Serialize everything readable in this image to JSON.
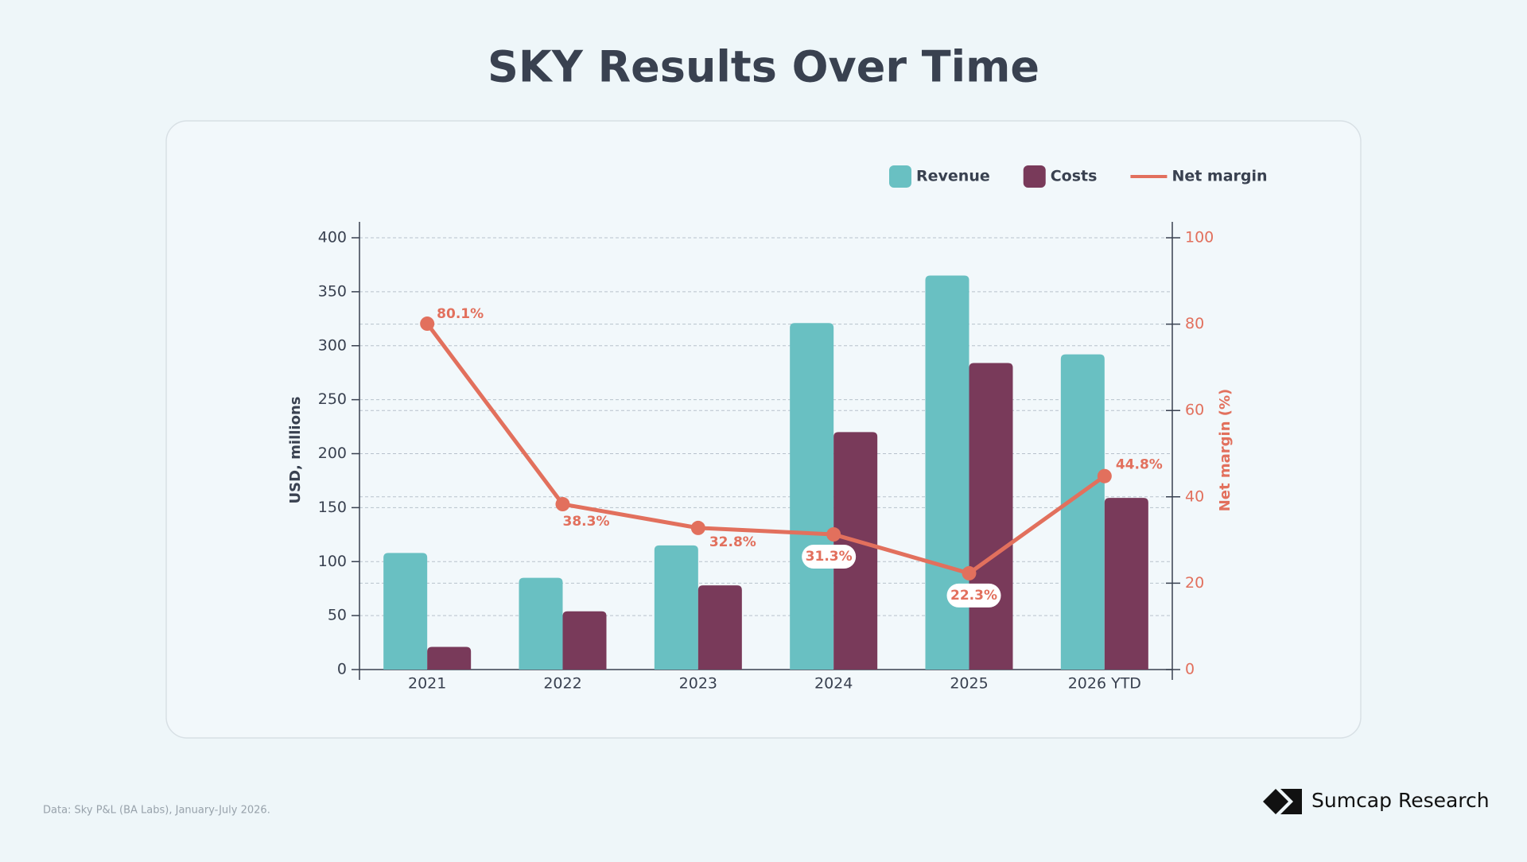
{
  "chart_data": {
    "type": "bar",
    "title": "SKY Results Over Time",
    "categories": [
      "2021",
      "2022",
      "2023",
      "2024",
      "2025",
      "2026 YTD"
    ],
    "series": [
      {
        "name": "Revenue",
        "color": "#69c0c2",
        "values": [
          108,
          85,
          115,
          321,
          365,
          292
        ]
      },
      {
        "name": "Costs",
        "color": "#793a5a",
        "values": [
          21,
          54,
          78,
          220,
          284,
          159
        ]
      },
      {
        "name": "Net margin",
        "color": "#e2705d",
        "type": "line",
        "axis": "y2",
        "values": [
          80.1,
          38.3,
          32.8,
          31.3,
          22.3,
          44.8
        ],
        "value_labels": [
          "80.1%",
          "38.3%",
          "32.8%",
          "31.3%",
          "22.3%",
          "44.8%"
        ]
      }
    ],
    "ylabel": "USD, millions",
    "y2label": "Net margin (%)",
    "ylim": [
      0,
      400
    ],
    "yticks": [
      0,
      50,
      100,
      150,
      200,
      250,
      300,
      350,
      400
    ],
    "y2lim": [
      0,
      100
    ],
    "y2ticks": [
      0,
      20,
      40,
      60,
      80,
      100
    ],
    "grid": true
  },
  "footer": {
    "source": "Data: Sky P&L (BA Labs), January-July 2026.",
    "brand": "Sumcap Research"
  }
}
